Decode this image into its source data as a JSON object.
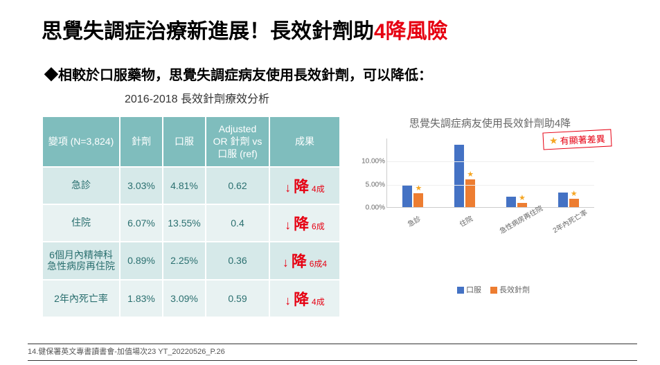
{
  "title_a": "思覺失調症治療新進展！長效針劑助",
  "title_b": "4降風險",
  "subtitle": "◆相較於口服藥物，思覺失調症病友使用長效針劑，可以降低：",
  "analysis_label": "2016-2018 長效針劑療效分析",
  "table": {
    "headers": {
      "var": "變項\n(N=3,824)",
      "inject": "針劑",
      "oral": "口服",
      "adj": "Adjusted OR\n針劑 vs 口服\n(ref)",
      "result": "成果"
    },
    "rows": [
      {
        "label": "急診",
        "inject": "3.03%",
        "oral": "4.81%",
        "adj": "0.62",
        "arrow": "↓",
        "jiang": "降",
        "suffix": "4成"
      },
      {
        "label": "住院",
        "inject": "6.07%",
        "oral": "13.55%",
        "adj": "0.4",
        "arrow": "↓",
        "jiang": "降",
        "suffix": "6成"
      },
      {
        "label": "6個月內精神科急性病房再住院",
        "inject": "0.89%",
        "oral": "2.25%",
        "adj": "0.36",
        "arrow": "↓",
        "jiang": "降",
        "suffix": "6成4"
      },
      {
        "label": "2年內死亡率",
        "inject": "1.83%",
        "oral": "3.09%",
        "adj": "0.59",
        "arrow": "↓",
        "jiang": "降",
        "suffix": "4成"
      }
    ]
  },
  "chart": {
    "title": "思覺失調症病友使用長效針劑助4降",
    "badge_star": "★",
    "badge_text": "有顯著差異",
    "ymax": 15,
    "yticks": [
      {
        "v": 0,
        "label": "0.00%"
      },
      {
        "v": 5,
        "label": "5.00%"
      },
      {
        "v": 10,
        "label": "10.00%"
      }
    ],
    "categories": [
      {
        "label": "急診",
        "oral": 4.81,
        "inject": 3.03,
        "star": true
      },
      {
        "label": "住院",
        "oral": 13.55,
        "inject": 6.07,
        "star": true
      },
      {
        "label": "急性病房再住院",
        "oral": 2.25,
        "inject": 0.89,
        "star": true
      },
      {
        "label": "2年內死亡率",
        "oral": 3.09,
        "inject": 1.83,
        "star": true
      }
    ],
    "colors": {
      "oral": "#4472c4",
      "inject": "#ed7d31"
    },
    "legend": {
      "oral": "口服",
      "inject": "長效針劑"
    }
  },
  "footer": "14.健保署英文專書讀書會-加值場次23 YT_20220526_P.26"
}
